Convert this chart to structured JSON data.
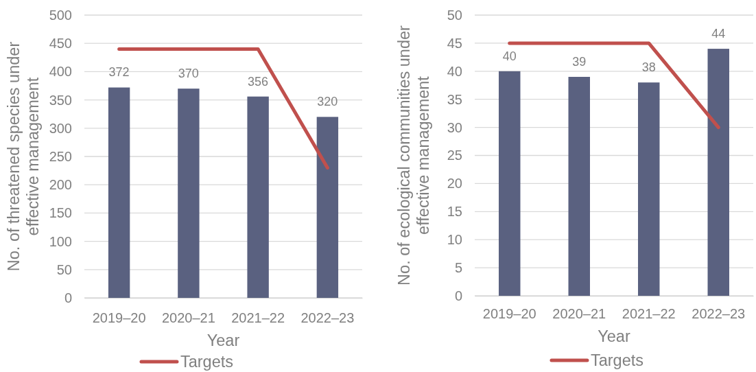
{
  "chart_data": [
    {
      "type": "bar",
      "categories": [
        "2019–20",
        "2020–21",
        "2021–22",
        "2022–23"
      ],
      "xlabel": "Year",
      "ylabel": "No. of threatened species under effective management",
      "ylim": [
        0,
        500
      ],
      "yticks": [
        0,
        50,
        100,
        150,
        200,
        250,
        300,
        350,
        400,
        450,
        500
      ],
      "grid": "y",
      "legend": "bottom",
      "series": [
        {
          "color": "#5a6180",
          "values": [
            372,
            370,
            356,
            320
          ],
          "value_labels": [
            "372",
            "370",
            "356",
            "320"
          ]
        },
        {
          "type": "line",
          "name": "Targets",
          "color": "#c0504d",
          "values": [
            440,
            440,
            440,
            230
          ]
        }
      ]
    },
    {
      "type": "bar",
      "categories": [
        "2019–20",
        "2020–21",
        "2021–22",
        "2022–23"
      ],
      "xlabel": "Year",
      "ylabel": "No. of ecological communities under effective management",
      "ylim": [
        0,
        50
      ],
      "yticks": [
        0,
        5,
        10,
        15,
        20,
        25,
        30,
        35,
        40,
        45,
        50
      ],
      "grid": "y",
      "legend": "bottom",
      "series": [
        {
          "color": "#5a6180",
          "values": [
            40,
            39,
            38,
            44
          ],
          "value_labels": [
            "40",
            "39",
            "38",
            "44"
          ]
        },
        {
          "type": "line",
          "name": "Targets",
          "color": "#c0504d",
          "values": [
            45,
            45,
            45,
            30
          ]
        }
      ]
    }
  ]
}
